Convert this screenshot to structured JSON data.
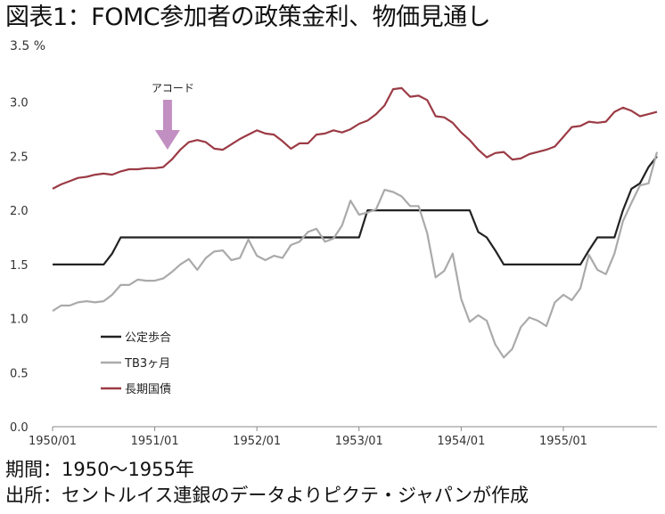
{
  "title": "図表1：FOMC参加者の政策金利、物価見通し",
  "footer": {
    "period": "期間：1950～1955年",
    "source": "出所：セントルイス連銀のデータよりピクテ・ジャパンが作成"
  },
  "chart_data": {
    "type": "line",
    "unit_label": "3.5 %",
    "ylim": [
      0,
      3.5
    ],
    "y_ticks": [
      "0.0",
      "0.5",
      "1.0",
      "1.5",
      "2.0",
      "2.5",
      "3.0"
    ],
    "x_range": [
      0,
      71
    ],
    "x_ticks": [
      {
        "i": 0,
        "label": "1950/01"
      },
      {
        "i": 12,
        "label": "1951/01"
      },
      {
        "i": 24,
        "label": "1952/01"
      },
      {
        "i": 36,
        "label": "1953/01"
      },
      {
        "i": 48,
        "label": "1954/01"
      },
      {
        "i": 60,
        "label": "1955/01"
      }
    ],
    "annotation": {
      "label": "アコード",
      "i": 13.5,
      "color": "#c28fc2"
    },
    "series": [
      {
        "name": "公定歩合",
        "color": "#222222",
        "values": [
          1.5,
          1.5,
          1.5,
          1.5,
          1.5,
          1.5,
          1.5,
          1.6,
          1.75,
          1.75,
          1.75,
          1.75,
          1.75,
          1.75,
          1.75,
          1.75,
          1.75,
          1.75,
          1.75,
          1.75,
          1.75,
          1.75,
          1.75,
          1.75,
          1.75,
          1.75,
          1.75,
          1.75,
          1.75,
          1.75,
          1.75,
          1.75,
          1.75,
          1.75,
          1.75,
          1.75,
          1.75,
          2.0,
          2.0,
          2.0,
          2.0,
          2.0,
          2.0,
          2.0,
          2.0,
          2.0,
          2.0,
          2.0,
          2.0,
          2.0,
          1.8,
          1.75,
          1.63,
          1.5,
          1.5,
          1.5,
          1.5,
          1.5,
          1.5,
          1.5,
          1.5,
          1.5,
          1.5,
          1.63,
          1.75,
          1.75,
          1.75,
          2.0,
          2.2,
          2.25,
          2.4,
          2.5
        ]
      },
      {
        "name": "TB3ヶ月",
        "color": "#aaaaaa",
        "values": [
          1.07,
          1.12,
          1.12,
          1.15,
          1.16,
          1.15,
          1.16,
          1.22,
          1.31,
          1.31,
          1.36,
          1.35,
          1.35,
          1.37,
          1.43,
          1.5,
          1.55,
          1.45,
          1.56,
          1.62,
          1.63,
          1.54,
          1.56,
          1.73,
          1.58,
          1.54,
          1.58,
          1.56,
          1.68,
          1.71,
          1.8,
          1.83,
          1.71,
          1.74,
          1.86,
          2.09,
          1.96,
          1.98,
          2.01,
          2.19,
          2.17,
          2.13,
          2.04,
          2.04,
          1.79,
          1.38,
          1.44,
          1.6,
          1.18,
          0.97,
          1.03,
          0.98,
          0.76,
          0.64,
          0.72,
          0.92,
          1.01,
          0.98,
          0.93,
          1.15,
          1.22,
          1.17,
          1.28,
          1.59,
          1.45,
          1.41,
          1.6,
          1.9,
          2.07,
          2.23,
          2.25,
          2.54
        ]
      },
      {
        "name": "長期国債",
        "color": "#9b3b45",
        "values": [
          2.2,
          2.24,
          2.27,
          2.3,
          2.31,
          2.33,
          2.34,
          2.33,
          2.36,
          2.38,
          2.38,
          2.39,
          2.39,
          2.4,
          2.47,
          2.56,
          2.63,
          2.65,
          2.63,
          2.57,
          2.56,
          2.61,
          2.66,
          2.7,
          2.74,
          2.71,
          2.7,
          2.64,
          2.57,
          2.62,
          2.62,
          2.7,
          2.71,
          2.74,
          2.72,
          2.75,
          2.8,
          2.83,
          2.89,
          2.97,
          3.12,
          3.13,
          3.05,
          3.06,
          3.02,
          2.87,
          2.86,
          2.81,
          2.72,
          2.65,
          2.56,
          2.49,
          2.53,
          2.54,
          2.47,
          2.48,
          2.52,
          2.54,
          2.56,
          2.59,
          2.68,
          2.77,
          2.78,
          2.82,
          2.81,
          2.82,
          2.91,
          2.95,
          2.92,
          2.87,
          2.89,
          2.91
        ]
      }
    ]
  }
}
